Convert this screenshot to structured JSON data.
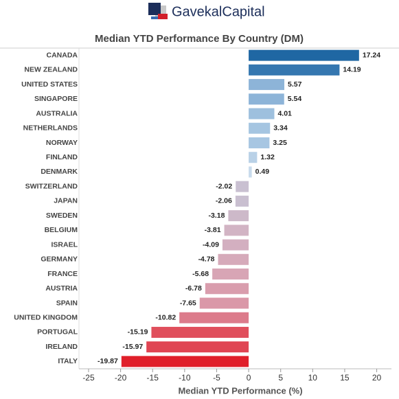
{
  "header": {
    "brand": "GavekalCapital"
  },
  "chart_data": {
    "type": "hbar",
    "title": "Median YTD Performance By Country (DM)",
    "x_label": "Median YTD Performance (%)",
    "categories": [
      "CANADA",
      "NEW ZEALAND",
      "UNITED STATES",
      "SINGAPORE",
      "AUSTRALIA",
      "NETHERLANDS",
      "NORWAY",
      "FINLAND",
      "DENMARK",
      "SWITZERLAND",
      "JAPAN",
      "SWEDEN",
      "BELGIUM",
      "ISRAEL",
      "GERMANY",
      "FRANCE",
      "AUSTRIA",
      "SPAIN",
      "UNITED KINGDOM",
      "PORTUGAL",
      "IRELAND",
      "ITALY"
    ],
    "values": [
      17.24,
      14.19,
      5.57,
      5.54,
      4.01,
      3.34,
      3.25,
      1.32,
      0.49,
      -2.02,
      -2.06,
      -3.18,
      -3.81,
      -4.09,
      -4.78,
      -5.68,
      -6.78,
      -7.65,
      -10.82,
      -15.19,
      -15.97,
      -19.87
    ],
    "colors": [
      "#1f67a3",
      "#3577b0",
      "#8db4d8",
      "#8db4d8",
      "#9ec0de",
      "#a5c5e1",
      "#a7c6e2",
      "#b9d1e7",
      "#c8dbec",
      "#c9c0d1",
      "#c9bfd0",
      "#cdb9c9",
      "#d2b4c4",
      "#d3afc0",
      "#d6aaba",
      "#d8a5b5",
      "#d99dad",
      "#da98a8",
      "#dc7b8b",
      "#e04f5c",
      "#e04553",
      "#e01f2a"
    ],
    "xlim": [
      -26.5,
      22.3
    ],
    "xticks": [
      -25,
      -20,
      -15,
      -10,
      -5,
      0,
      5,
      10,
      15,
      20
    ]
  }
}
